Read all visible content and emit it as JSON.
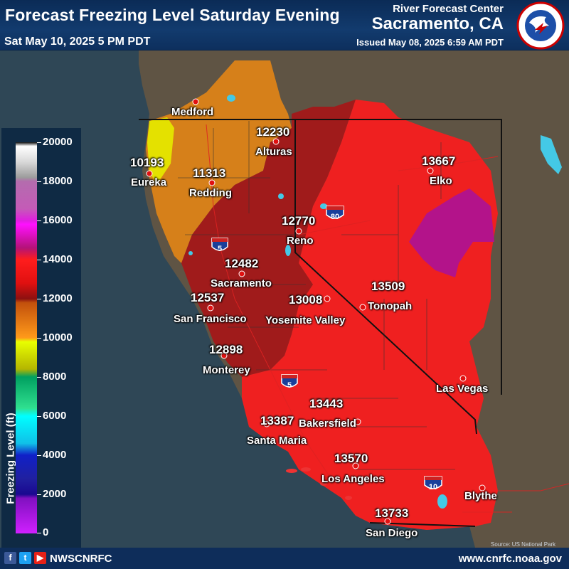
{
  "header": {
    "title": "Forecast Freezing Level Saturday Evening",
    "valid_time": "Sat May 10, 2025 5 PM PDT",
    "agency_line1": "River Forecast Center",
    "agency_line2": "Sacramento, CA",
    "issued": "Issued May 08, 2025 6:59 AM PDT"
  },
  "legend": {
    "title": "Freezing Level (ft)",
    "ticks": [
      "20000",
      "18000",
      "16000",
      "14000",
      "12000",
      "10000",
      "8000",
      "6000",
      "4000",
      "2000",
      "0"
    ]
  },
  "stations": [
    {
      "name": "Medford",
      "value": ""
    },
    {
      "name": "Eureka",
      "value": "10193"
    },
    {
      "name": "Redding",
      "value": "11313"
    },
    {
      "name": "Alturas",
      "value": "12230"
    },
    {
      "name": "Reno",
      "value": "12770"
    },
    {
      "name": "Elko",
      "value": "13667"
    },
    {
      "name": "Sacramento",
      "value": "12482"
    },
    {
      "name": "San Francisco",
      "value": "12537"
    },
    {
      "name": "Yosemite Valley",
      "value": "13008"
    },
    {
      "name": "Tonopah",
      "value": "13509"
    },
    {
      "name": "Monterey",
      "value": "12898"
    },
    {
      "name": "Bakersfield",
      "value": "13443"
    },
    {
      "name": "Santa Maria",
      "value": "13387"
    },
    {
      "name": "Los Angeles",
      "value": "13570"
    },
    {
      "name": "Las Vegas",
      "value": ""
    },
    {
      "name": "Blythe",
      "value": ""
    },
    {
      "name": "San Diego",
      "value": "13733"
    }
  ],
  "highways": [
    "5",
    "80",
    "5",
    "10"
  ],
  "footer": {
    "handle": "NWSCNRFC",
    "website": "www.cnrfc.noaa.gov",
    "credit": "Source: US National Park Service",
    "social_icons": [
      "facebook-icon",
      "twitter-icon",
      "youtube-icon"
    ]
  },
  "colors": {
    "below_10000": "#e5e500",
    "range_10000_12000": "#d8821a",
    "range_12000_13000": "#a21a1a",
    "range_13000_14000": "#ef2020",
    "range_14000_16000": "#b4128a",
    "ocean": "#2f4756",
    "land": "#5f5040"
  }
}
